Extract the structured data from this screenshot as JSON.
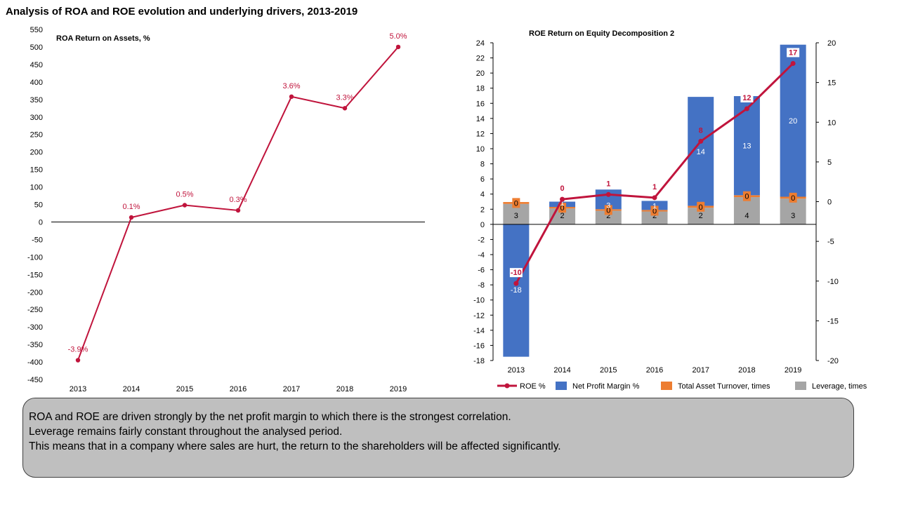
{
  "page": {
    "title": "Analysis of ROA and ROE evolution and underlying drivers, 2013-2019"
  },
  "summary": {
    "lines": [
      "ROA and ROE are driven strongly by the net profit margin to which there is the strongest correlation.",
      "Leverage remains fairly constant throughout the analysed period.",
      "This means that in a company where sales are hurt, the return to the shareholders will be affected significantly."
    ]
  },
  "chart_data": [
    {
      "id": "roa",
      "type": "line",
      "title": "ROA Return on Assets, %",
      "categories": [
        "2013",
        "2014",
        "2015",
        "2016",
        "2017",
        "2018",
        "2019"
      ],
      "values": [
        -395,
        13,
        48,
        33,
        358,
        325,
        500
      ],
      "data_labels": [
        "-3.9%",
        "0.1%",
        "0.5%",
        "0.3%",
        "3.6%",
        "3.3%",
        "5.0%"
      ],
      "ylim": [
        -450,
        550
      ],
      "yticks": [
        550,
        500,
        450,
        400,
        350,
        300,
        250,
        200,
        150,
        100,
        50,
        0,
        -50,
        -100,
        -150,
        -200,
        -250,
        -300,
        -350,
        -400,
        -450
      ],
      "color": "#c0143c",
      "grid": false
    },
    {
      "id": "roe",
      "type": "bar",
      "title": "ROE Return on Equity Decomposition 2",
      "categories": [
        "2013",
        "2014",
        "2015",
        "2016",
        "2017",
        "2018",
        "2019"
      ],
      "ylim_left": [
        -18,
        24
      ],
      "yticks_left": [
        24,
        22,
        20,
        18,
        16,
        14,
        12,
        10,
        8,
        6,
        4,
        2,
        0,
        -2,
        -4,
        -6,
        -8,
        -10,
        -12,
        -14,
        -16,
        -18
      ],
      "ylim_right": [
        -20,
        20
      ],
      "yticks_right": [
        20,
        15,
        10,
        5,
        0,
        -5,
        -10,
        -15,
        -20
      ],
      "series": [
        {
          "name": "Leverage, times",
          "color": "#a5a5a5",
          "values": [
            2.7,
            2.1,
            1.8,
            1.7,
            2.2,
            3.6,
            3.4
          ],
          "labels": [
            "3",
            "2",
            "2",
            "2",
            "2",
            "4",
            "3"
          ]
        },
        {
          "name": "Total Asset Turnover, times",
          "color": "#ed7d31",
          "values": [
            0.25,
            0.2,
            0.2,
            0.2,
            0.25,
            0.25,
            0.25
          ],
          "labels": [
            "0",
            "0",
            "0",
            "0",
            "0",
            "0",
            "0"
          ]
        },
        {
          "name": "Net Profit Margin %",
          "color": "#4472c4",
          "values": [
            -17.5,
            0.7,
            2.6,
            1.2,
            14.4,
            13.1,
            20.1
          ],
          "labels": [
            "-18",
            "1",
            "3",
            "1",
            "14",
            "13",
            "20"
          ]
        }
      ],
      "line_series": {
        "name": "ROE %",
        "color": "#c0143c",
        "axis": "right",
        "values": [
          -10.3,
          0.3,
          0.9,
          0.5,
          7.6,
          11.7,
          17.4
        ],
        "labels": [
          "-10",
          "0",
          "1",
          "1",
          "8",
          "12",
          "17"
        ]
      },
      "legend": {
        "position": "bottom",
        "order": [
          "ROE %",
          "Net Profit Margin %",
          "Total Asset Turnover, times",
          "Leverage, times"
        ]
      },
      "grid": false
    }
  ]
}
